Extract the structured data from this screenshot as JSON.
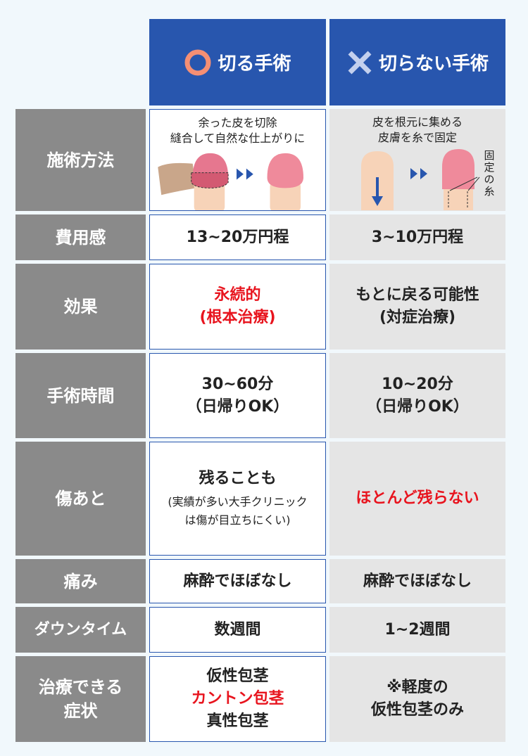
{
  "header": {
    "col_cut": "切る手術",
    "col_nocut": "切らない手術",
    "icon_cut": "circle-icon",
    "icon_nocut": "cross-icon",
    "colors": {
      "header": "#2856ae",
      "circle": "#f58f74",
      "cross": "#c3d0ee",
      "highlight": "#e8141e"
    }
  },
  "rows": [
    {
      "label": "施術方法",
      "cut": [
        "余った皮を切除",
        "縫合して自然な仕上がりに"
      ],
      "nocut": [
        "皮を根元に集める",
        "皮膚を糸で固定"
      ],
      "nocut_note": "固定の糸"
    },
    {
      "label": "費用感",
      "cut": "13~20万円程",
      "nocut": "3~10万円程"
    },
    {
      "label": "効果",
      "cut": [
        "永続的",
        "(根本治療)"
      ],
      "nocut": [
        "もとに戻る可能性",
        "(対症治療)"
      ]
    },
    {
      "label": "手術時間",
      "cut": [
        "30~60分",
        "（日帰りOK）"
      ],
      "nocut": [
        "10~20分",
        "（日帰りOK）"
      ]
    },
    {
      "label": "傷あと",
      "cut": "残ることも",
      "cut_note": [
        "(実績が多い大手クリニック",
        "は傷が目立ちにくい)"
      ],
      "nocut": "ほとんど残らない"
    },
    {
      "label": "痛み",
      "cut": "麻酔でほぼなし",
      "nocut": "麻酔でほぼなし"
    },
    {
      "label": "ダウンタイム",
      "cut": "数週間",
      "nocut": "1~2週間"
    },
    {
      "label": [
        "治療できる",
        "症状"
      ],
      "cut": [
        "仮性包茎",
        "カントン包茎",
        "真性包茎"
      ],
      "nocut": [
        "※軽度の",
        "仮性包茎のみ"
      ]
    }
  ]
}
